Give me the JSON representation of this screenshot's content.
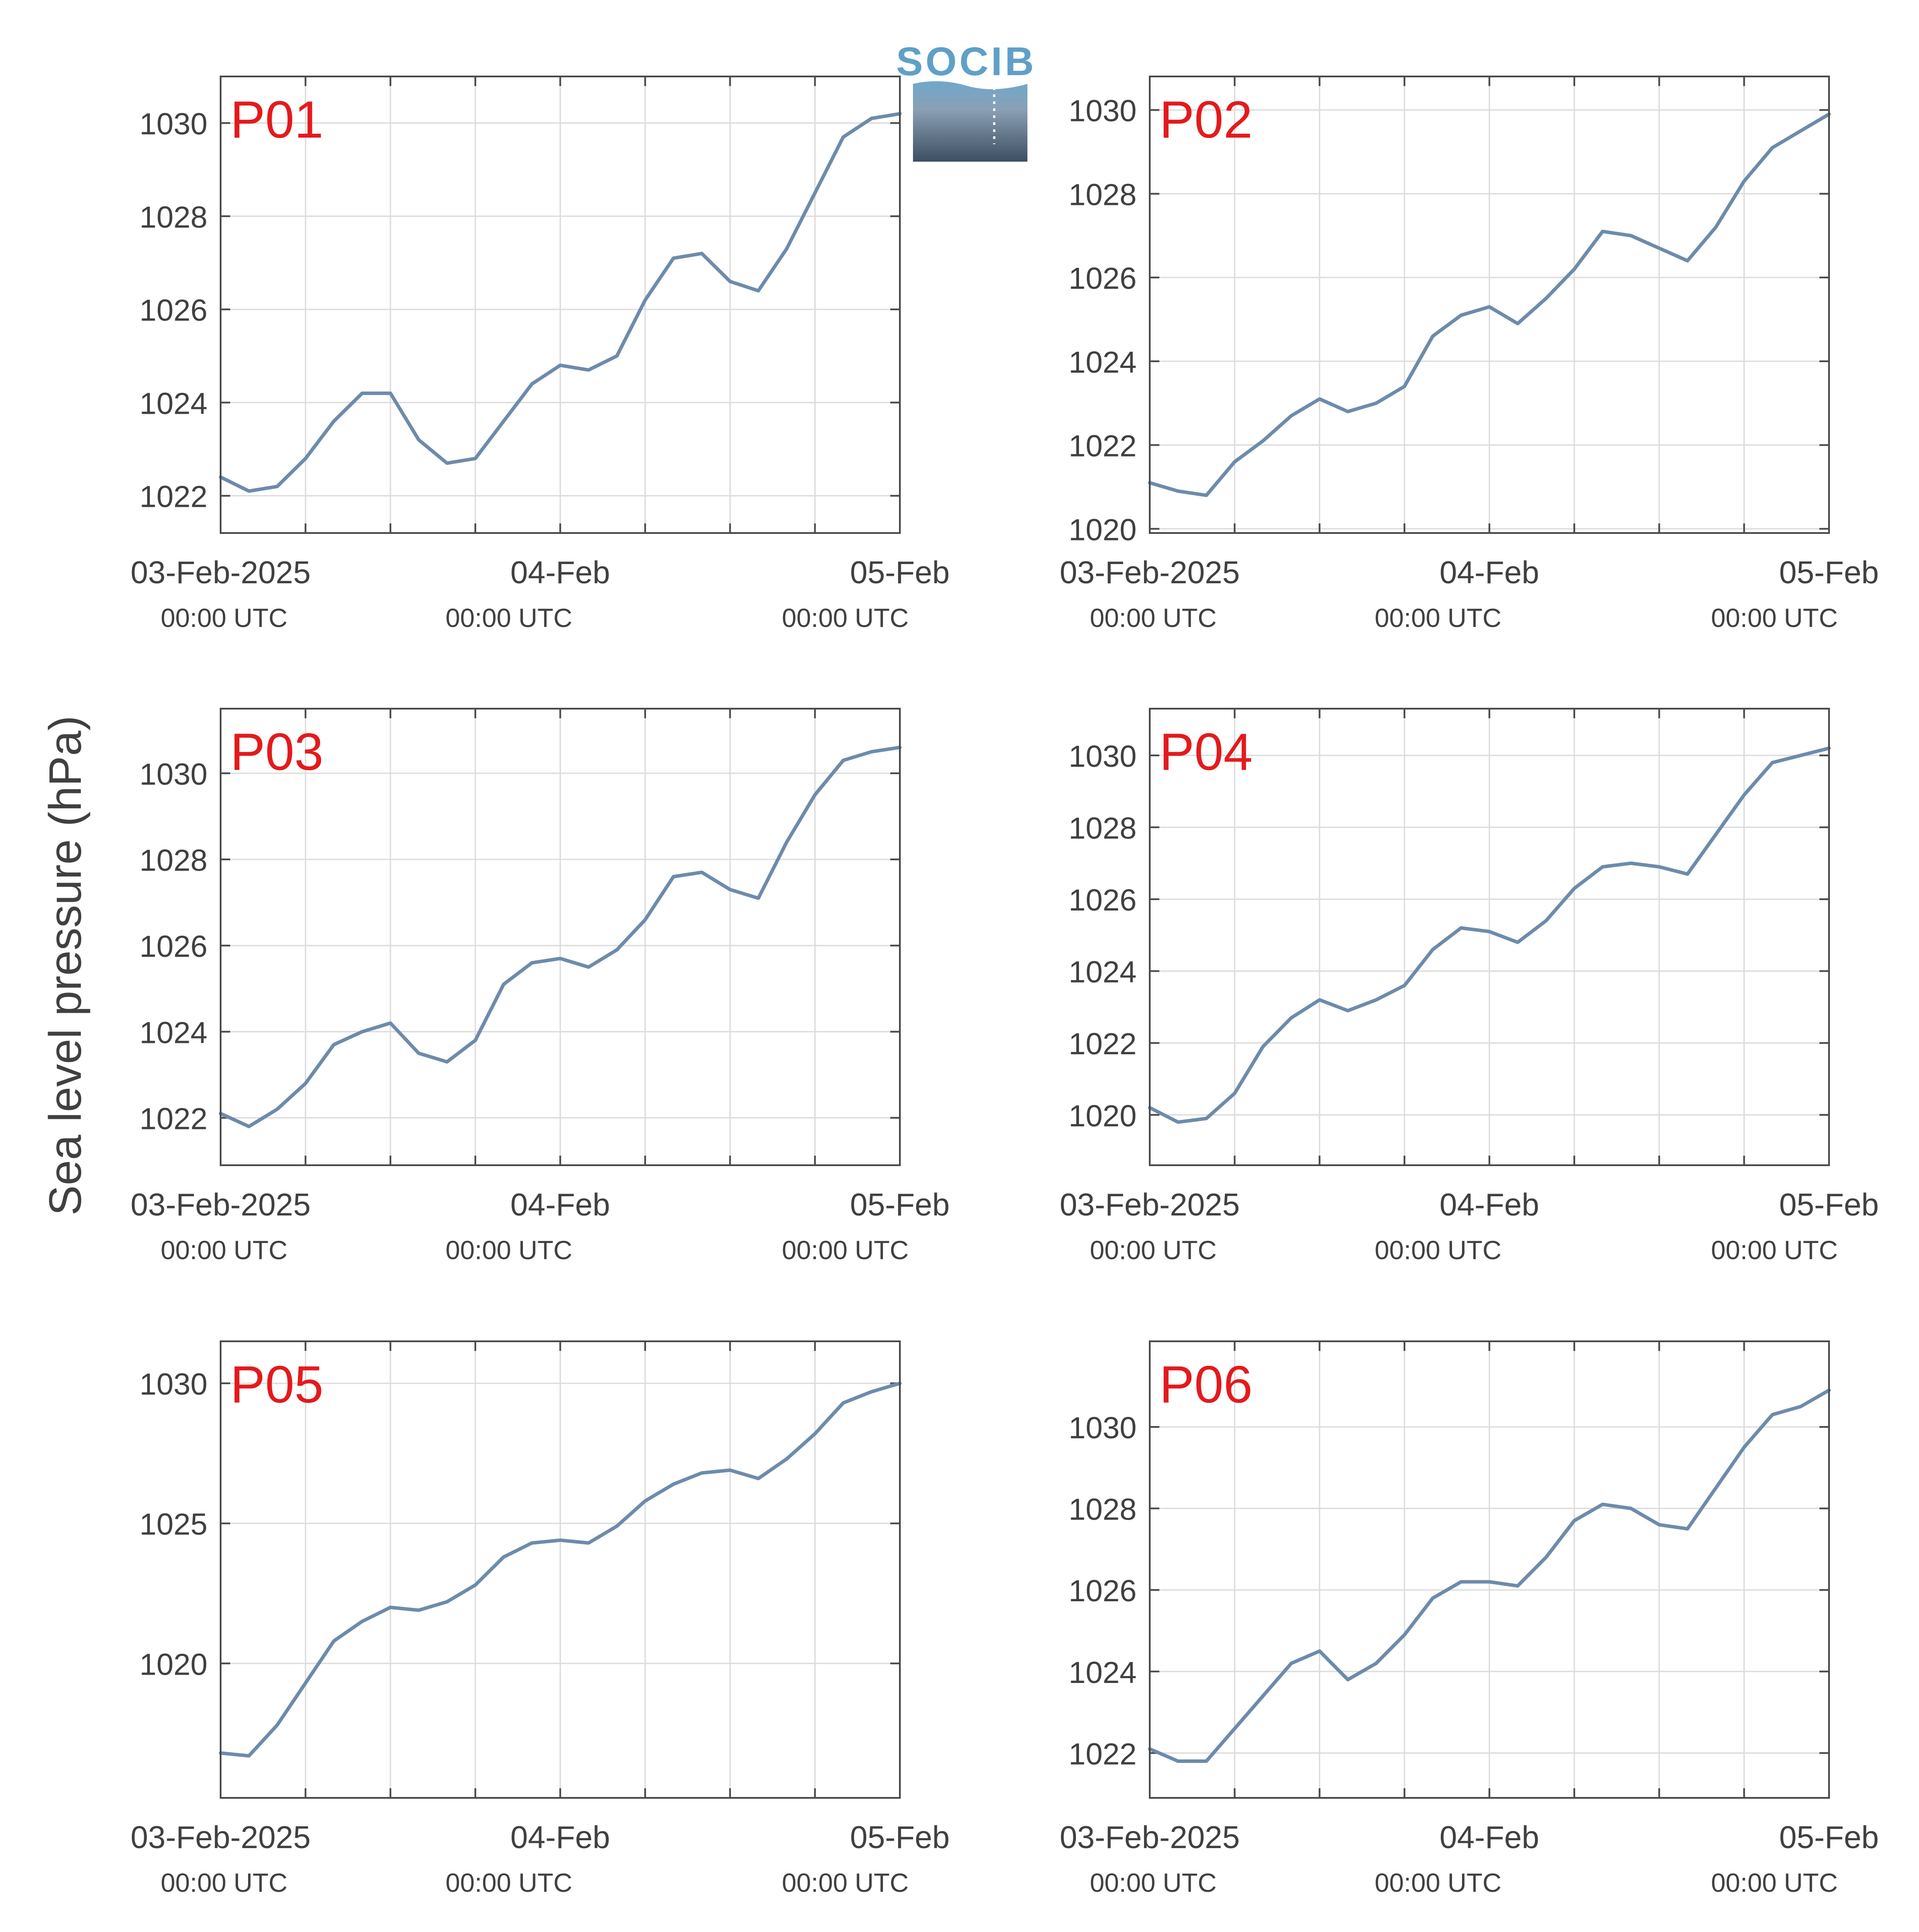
{
  "figure": {
    "ylabel": "Sea level pressure (hPa)",
    "logo_text": "SOCIB",
    "colors": {
      "line": "#6d8bab",
      "grid": "#dcdcdc",
      "axis": "#4a4a4a",
      "panel_label": "#e41a1c",
      "text": "#404040"
    }
  },
  "chart_data": [
    {
      "type": "line",
      "label": "P01",
      "x_range": [
        "2025-02-03 00:00",
        "2025-02-05 00:00"
      ],
      "xticks": [
        {
          "label": "03-Feb-2025",
          "sub": "00:00 UTC"
        },
        {
          "label": "04-Feb",
          "sub": "00:00 UTC"
        },
        {
          "label": "05-Feb",
          "sub": "00:00 UTC"
        }
      ],
      "ylim": [
        1021.2,
        1031
      ],
      "yticks": [
        1022,
        1024,
        1026,
        1028,
        1030
      ],
      "grid": true,
      "x_hours": [
        0,
        2,
        4,
        6,
        8,
        10,
        12,
        14,
        16,
        18,
        20,
        22,
        24,
        26,
        28,
        30,
        32,
        34,
        36,
        38,
        40,
        42,
        44,
        46,
        48
      ],
      "values": [
        1022.4,
        1022.1,
        1022.2,
        1022.8,
        1023.6,
        1024.2,
        1024.2,
        1023.2,
        1022.7,
        1022.8,
        1023.6,
        1024.4,
        1024.8,
        1024.7,
        1025.0,
        1026.2,
        1027.1,
        1027.2,
        1026.6,
        1026.4,
        1027.3,
        1028.5,
        1029.7,
        1030.1,
        1030.2
      ]
    },
    {
      "type": "line",
      "label": "P02",
      "x_range": [
        "2025-02-03 00:00",
        "2025-02-05 00:00"
      ],
      "xticks": [
        {
          "label": "03-Feb-2025",
          "sub": "00:00 UTC"
        },
        {
          "label": "04-Feb",
          "sub": "00:00 UTC"
        },
        {
          "label": "05-Feb",
          "sub": "00:00 UTC"
        }
      ],
      "ylim": [
        1019.9,
        1030.8
      ],
      "yticks": [
        1020,
        1022,
        1024,
        1026,
        1028,
        1030
      ],
      "grid": true,
      "x_hours": [
        0,
        2,
        4,
        6,
        8,
        10,
        12,
        14,
        16,
        18,
        20,
        22,
        24,
        26,
        28,
        30,
        32,
        34,
        36,
        38,
        40,
        42,
        44,
        46,
        48
      ],
      "values": [
        1021.1,
        1020.9,
        1020.8,
        1021.6,
        1022.1,
        1022.7,
        1023.1,
        1022.8,
        1023.0,
        1023.4,
        1024.6,
        1025.1,
        1025.3,
        1024.9,
        1025.5,
        1026.2,
        1027.1,
        1027.0,
        1026.7,
        1026.4,
        1027.2,
        1028.3,
        1029.1,
        1029.5,
        1029.9
      ]
    },
    {
      "type": "line",
      "label": "P03",
      "x_range": [
        "2025-02-03 00:00",
        "2025-02-05 00:00"
      ],
      "xticks": [
        {
          "label": "03-Feb-2025",
          "sub": "00:00 UTC"
        },
        {
          "label": "04-Feb",
          "sub": "00:00 UTC"
        },
        {
          "label": "05-Feb",
          "sub": "00:00 UTC"
        }
      ],
      "ylim": [
        1020.9,
        1031.5
      ],
      "yticks": [
        1022,
        1024,
        1026,
        1028,
        1030
      ],
      "grid": true,
      "x_hours": [
        0,
        2,
        4,
        6,
        8,
        10,
        12,
        14,
        16,
        18,
        20,
        22,
        24,
        26,
        28,
        30,
        32,
        34,
        36,
        38,
        40,
        42,
        44,
        46,
        48
      ],
      "values": [
        1022.1,
        1021.8,
        1022.2,
        1022.8,
        1023.7,
        1024.0,
        1024.2,
        1023.5,
        1023.3,
        1023.8,
        1025.1,
        1025.6,
        1025.7,
        1025.5,
        1025.9,
        1026.6,
        1027.6,
        1027.7,
        1027.3,
        1027.1,
        1028.4,
        1029.5,
        1030.3,
        1030.5,
        1030.6
      ]
    },
    {
      "type": "line",
      "label": "P04",
      "x_range": [
        "2025-02-03 00:00",
        "2025-02-05 00:00"
      ],
      "xticks": [
        {
          "label": "03-Feb-2025",
          "sub": "00:00 UTC"
        },
        {
          "label": "04-Feb",
          "sub": "00:00 UTC"
        },
        {
          "label": "05-Feb",
          "sub": "00:00 UTC"
        }
      ],
      "ylim": [
        1018.6,
        1031.3
      ],
      "yticks": [
        1020,
        1022,
        1024,
        1026,
        1028,
        1030
      ],
      "grid": true,
      "x_hours": [
        0,
        2,
        4,
        6,
        8,
        10,
        12,
        14,
        16,
        18,
        20,
        22,
        24,
        26,
        28,
        30,
        32,
        34,
        36,
        38,
        40,
        42,
        44,
        46,
        48
      ],
      "values": [
        1020.2,
        1019.8,
        1019.9,
        1020.6,
        1021.9,
        1022.7,
        1023.2,
        1022.9,
        1023.2,
        1023.6,
        1024.6,
        1025.2,
        1025.1,
        1024.8,
        1025.4,
        1026.3,
        1026.9,
        1027.0,
        1026.9,
        1026.7,
        1027.8,
        1028.9,
        1029.8,
        1030.0,
        1030.2
      ]
    },
    {
      "type": "line",
      "label": "P05",
      "x_range": [
        "2025-02-03 00:00",
        "2025-02-05 00:00"
      ],
      "xticks": [
        {
          "label": "03-Feb-2025",
          "sub": "00:00 UTC"
        },
        {
          "label": "04-Feb",
          "sub": "00:00 UTC"
        },
        {
          "label": "05-Feb",
          "sub": "00:00 UTC"
        }
      ],
      "ylim": [
        1015.2,
        1031.5
      ],
      "yticks": [
        1020,
        1025,
        1030
      ],
      "grid": true,
      "x_hours": [
        0,
        2,
        4,
        6,
        8,
        10,
        12,
        14,
        16,
        18,
        20,
        22,
        24,
        26,
        28,
        30,
        32,
        34,
        36,
        38,
        40,
        42,
        44,
        46,
        48
      ],
      "values": [
        1016.8,
        1016.7,
        1017.8,
        1019.3,
        1020.8,
        1021.5,
        1022.0,
        1021.9,
        1022.2,
        1022.8,
        1023.8,
        1024.3,
        1024.4,
        1024.3,
        1024.9,
        1025.8,
        1026.4,
        1026.8,
        1026.9,
        1026.6,
        1027.3,
        1028.2,
        1029.3,
        1029.7,
        1030.0
      ]
    },
    {
      "type": "line",
      "label": "P06",
      "x_range": [
        "2025-02-03 00:00",
        "2025-02-05 00:00"
      ],
      "xticks": [
        {
          "label": "03-Feb-2025",
          "sub": "00:00 UTC"
        },
        {
          "label": "04-Feb",
          "sub": "00:00 UTC"
        },
        {
          "label": "05-Feb",
          "sub": "00:00 UTC"
        }
      ],
      "ylim": [
        1020.9,
        1032.1
      ],
      "yticks": [
        1022,
        1024,
        1026,
        1028,
        1030
      ],
      "grid": true,
      "x_hours": [
        0,
        2,
        4,
        6,
        8,
        10,
        12,
        14,
        16,
        18,
        20,
        22,
        24,
        26,
        28,
        30,
        32,
        34,
        36,
        38,
        40,
        42,
        44,
        46,
        48
      ],
      "values": [
        1022.1,
        1021.8,
        1021.8,
        1022.6,
        1023.4,
        1024.2,
        1024.5,
        1023.8,
        1024.2,
        1024.9,
        1025.8,
        1026.2,
        1026.2,
        1026.1,
        1026.8,
        1027.7,
        1028.1,
        1028.0,
        1027.6,
        1027.5,
        1028.5,
        1029.5,
        1030.3,
        1030.5,
        1030.9
      ]
    }
  ]
}
